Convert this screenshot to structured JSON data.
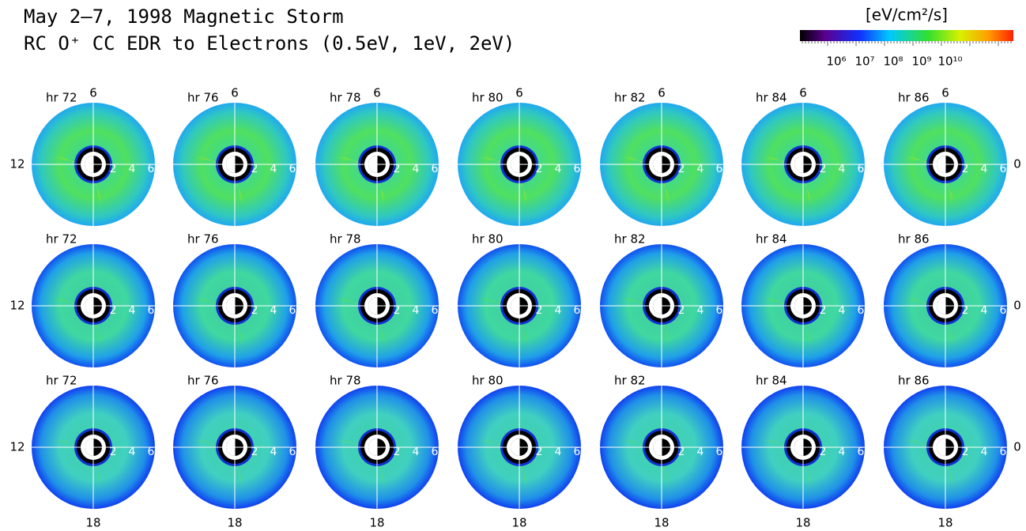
{
  "title": [
    "May 2–7, 1998 Magnetic Storm",
    "RC O⁺ CC EDR to Electrons (0.5eV, 1eV, 2eV)"
  ],
  "colorbar": {
    "label": "[eV/cm²/s]",
    "ticks": [
      "10⁶",
      "10⁷",
      "10⁸",
      "10⁹",
      "10¹⁰"
    ]
  },
  "rows": [
    {
      "panels": [
        "hr 72",
        "hr 76",
        "hr 78",
        "hr 80",
        "hr 82",
        "hr 84",
        "hr 86"
      ]
    },
    {
      "panels": [
        "hr 72",
        "hr 76",
        "hr 78",
        "hr 80",
        "hr 82",
        "hr 84",
        "hr 86"
      ]
    },
    {
      "panels": [
        "hr 72",
        "hr 76",
        "hr 78",
        "hr 80",
        "hr 82",
        "hr 84",
        "hr 86"
      ]
    }
  ],
  "axis_labels": {
    "top": "6",
    "left": "12",
    "right": "0",
    "bottom": "18",
    "radial": [
      "2",
      "4",
      "6"
    ]
  }
}
